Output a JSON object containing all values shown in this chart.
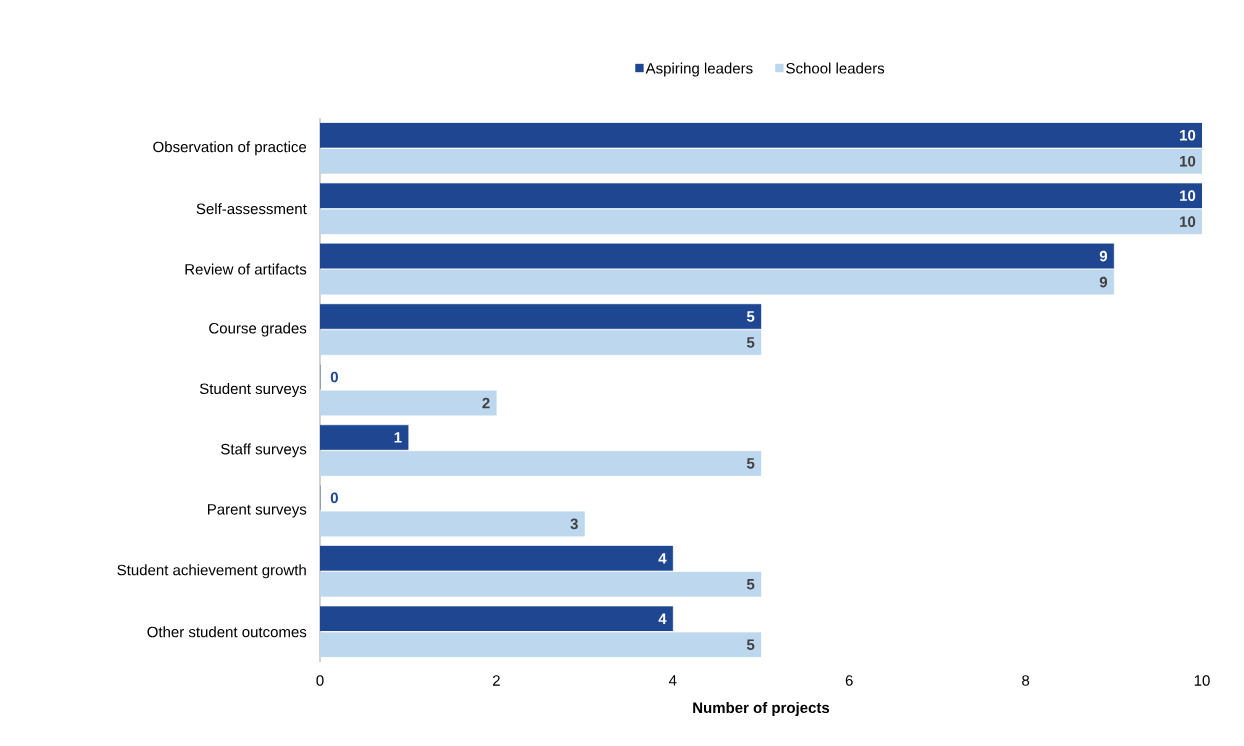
{
  "chart_data": {
    "type": "bar",
    "orientation": "horizontal",
    "xlabel": "Number of projects",
    "categories": [
      "Observation of practice",
      "Self-assessment",
      "Review of artifacts",
      "Course grades",
      "Student surveys",
      "Staff surveys",
      "Parent surveys",
      "Student achievement growth",
      "Other student outcomes"
    ],
    "series": [
      {
        "name": "Aspiring leaders",
        "color": "#1f4690",
        "values": [
          10,
          10,
          9,
          5,
          0,
          1,
          0,
          4,
          4
        ]
      },
      {
        "name": "School leaders",
        "color": "#bdd7ee",
        "values": [
          10,
          10,
          9,
          5,
          2,
          5,
          3,
          5,
          5
        ]
      }
    ],
    "xlim": [
      0,
      10
    ],
    "xticks": [
      0,
      2,
      4,
      6,
      8,
      10
    ],
    "data_labels": true,
    "legend": "top",
    "grid": false
  }
}
